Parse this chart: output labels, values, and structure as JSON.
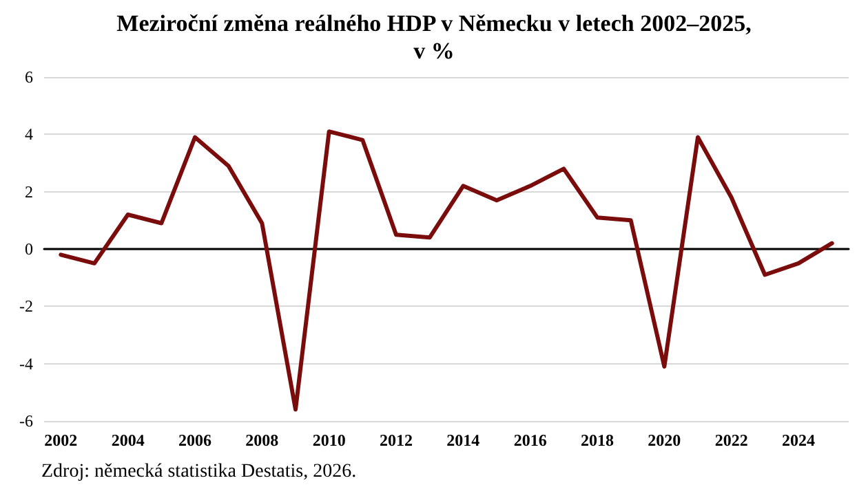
{
  "chart_data": {
    "type": "line",
    "title": "Meziroční změna reálného HDP v Německu v letech 2002–2025,\nv %",
    "categories": [
      "2002",
      null,
      "2004",
      null,
      "2006",
      null,
      "2008",
      null,
      "2010",
      null,
      "2012",
      null,
      "2014",
      null,
      "2016",
      null,
      "2018",
      null,
      "2020",
      null,
      "2022",
      null,
      "2024",
      null
    ],
    "series": [
      {
        "color": "#7b0c0c",
        "values": [
          -0.2,
          -0.5,
          1.2,
          0.9,
          3.9,
          2.9,
          0.9,
          -5.6,
          4.1,
          3.8,
          0.5,
          0.4,
          2.2,
          1.7,
          2.2,
          2.8,
          1.1,
          1.0,
          -4.1,
          3.9,
          1.8,
          -0.9,
          -0.5,
          0.2
        ]
      }
    ],
    "ylim": [
      -6,
      6
    ],
    "yticks": [
      -6,
      -4,
      -2,
      0,
      2,
      4,
      6
    ],
    "grid": "y",
    "marker": "none",
    "line_style": "solid",
    "annotations": [
      "Zdroj: německá statistika Destatis, 2026."
    ]
  }
}
